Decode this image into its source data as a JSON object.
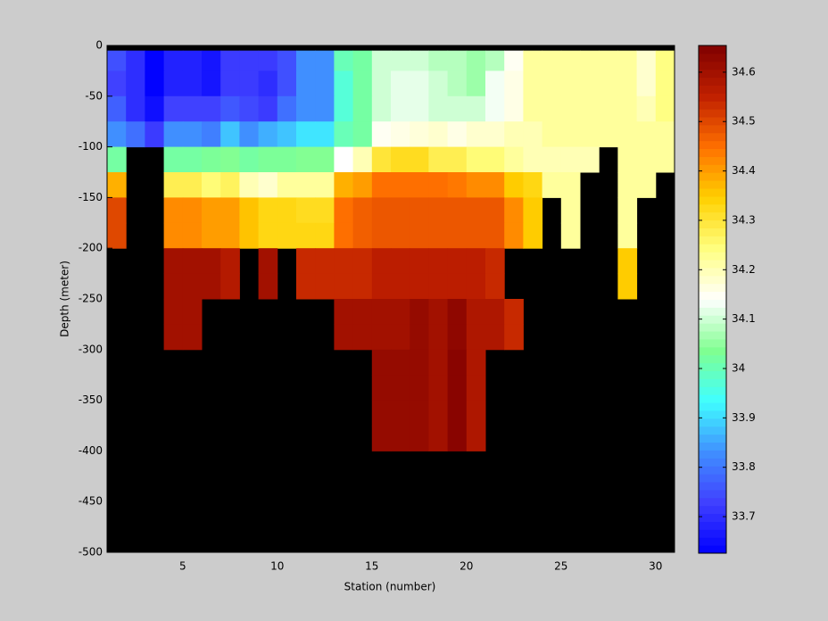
{
  "chart_data": {
    "type": "heatmap",
    "xlabel": "Station (number)",
    "ylabel": "Depth (meter)",
    "x": [
      1,
      2,
      3,
      4,
      5,
      6,
      7,
      8,
      9,
      10,
      11,
      12,
      13,
      14,
      15,
      16,
      17,
      18,
      19,
      20,
      21,
      22,
      23,
      24,
      25,
      26,
      27,
      28,
      29,
      30,
      31
    ],
    "y": [
      -5,
      -25,
      -50,
      -75,
      -100,
      -125,
      -150,
      -175,
      -200,
      -225,
      -250,
      -275,
      -300,
      -325,
      -350,
      -375,
      -400
    ],
    "values": [
      [
        33.75,
        33.7,
        33.63,
        33.68,
        33.68,
        33.66,
        33.72,
        33.72,
        33.72,
        33.75,
        33.83,
        33.83,
        34.0,
        34.02,
        34.1,
        34.1,
        34.1,
        34.08,
        34.08,
        34.06,
        34.08,
        34.15,
        34.22,
        34.22,
        34.22,
        34.22,
        34.22,
        34.22,
        34.18,
        34.24
      ],
      [
        33.73,
        33.7,
        33.63,
        33.68,
        33.68,
        33.66,
        33.72,
        33.72,
        33.7,
        33.75,
        33.83,
        33.83,
        33.97,
        34.02,
        34.1,
        34.12,
        34.12,
        34.1,
        34.08,
        34.06,
        34.13,
        34.16,
        34.22,
        34.22,
        34.22,
        34.22,
        34.22,
        34.22,
        34.18,
        34.24
      ],
      [
        33.77,
        33.7,
        33.65,
        33.73,
        33.73,
        33.73,
        33.76,
        33.74,
        33.72,
        33.79,
        33.83,
        33.83,
        33.97,
        34.02,
        34.1,
        34.12,
        34.12,
        34.1,
        34.1,
        34.1,
        34.13,
        34.16,
        34.22,
        34.22,
        34.22,
        34.22,
        34.22,
        34.22,
        34.2,
        34.24
      ],
      [
        33.83,
        33.79,
        33.72,
        33.83,
        33.83,
        33.81,
        33.88,
        33.83,
        33.86,
        33.88,
        33.91,
        33.91,
        34.0,
        34.02,
        34.15,
        34.16,
        34.17,
        34.18,
        34.16,
        34.18,
        34.18,
        34.2,
        34.2,
        34.22,
        34.22,
        34.22,
        34.22,
        34.22,
        34.22,
        34.22
      ],
      [
        34.02,
        null,
        null,
        34.02,
        34.02,
        34.03,
        34.04,
        34.02,
        34.03,
        34.03,
        34.04,
        34.04,
        34.14,
        34.2,
        34.3,
        34.32,
        34.32,
        34.28,
        34.28,
        34.25,
        34.25,
        34.22,
        34.2,
        34.2,
        34.2,
        34.2,
        null,
        34.22,
        34.22,
        34.22
      ],
      [
        34.38,
        null,
        null,
        34.28,
        34.28,
        34.25,
        34.27,
        34.2,
        34.18,
        34.22,
        34.22,
        34.22,
        34.38,
        34.4,
        34.45,
        34.45,
        34.45,
        34.45,
        34.44,
        34.42,
        34.42,
        34.35,
        34.33,
        34.22,
        34.22,
        null,
        null,
        34.22,
        34.22,
        null
      ],
      [
        34.5,
        null,
        null,
        34.42,
        34.42,
        34.4,
        34.4,
        34.36,
        34.33,
        34.33,
        34.32,
        34.32,
        34.45,
        34.47,
        34.48,
        34.48,
        34.48,
        34.48,
        34.48,
        34.48,
        34.48,
        34.42,
        34.35,
        null,
        34.22,
        null,
        null,
        34.22,
        null,
        null
      ],
      [
        34.5,
        null,
        null,
        34.42,
        34.42,
        34.4,
        34.4,
        34.36,
        34.33,
        34.33,
        34.33,
        34.33,
        34.45,
        34.47,
        34.48,
        34.48,
        34.48,
        34.48,
        34.48,
        34.48,
        34.48,
        34.42,
        34.35,
        null,
        34.22,
        null,
        null,
        34.22,
        null,
        null
      ],
      [
        null,
        null,
        null,
        34.6,
        34.6,
        34.6,
        34.57,
        null,
        34.6,
        null,
        34.54,
        34.54,
        34.54,
        34.54,
        34.56,
        34.56,
        34.56,
        34.56,
        34.56,
        34.56,
        34.54,
        null,
        null,
        null,
        null,
        null,
        null,
        34.35,
        null,
        null
      ],
      [
        null,
        null,
        null,
        34.6,
        34.6,
        34.6,
        34.57,
        null,
        34.6,
        null,
        34.54,
        34.54,
        34.54,
        34.54,
        34.56,
        34.56,
        34.56,
        34.56,
        34.56,
        34.56,
        34.54,
        null,
        null,
        null,
        null,
        null,
        null,
        34.35,
        null,
        null
      ],
      [
        null,
        null,
        null,
        34.6,
        34.6,
        null,
        null,
        null,
        null,
        null,
        null,
        null,
        34.6,
        34.6,
        34.6,
        34.6,
        34.62,
        34.6,
        34.63,
        34.58,
        34.58,
        34.54,
        null,
        null,
        null,
        null,
        null,
        null,
        null,
        null
      ],
      [
        null,
        null,
        null,
        34.6,
        34.6,
        null,
        null,
        null,
        null,
        null,
        null,
        null,
        34.6,
        34.6,
        34.6,
        34.6,
        34.62,
        34.6,
        34.63,
        34.58,
        34.58,
        34.54,
        null,
        null,
        null,
        null,
        null,
        null,
        null,
        null
      ],
      [
        null,
        null,
        null,
        null,
        null,
        null,
        null,
        null,
        null,
        null,
        null,
        null,
        null,
        null,
        34.62,
        34.62,
        34.62,
        34.6,
        34.64,
        34.58,
        null,
        null,
        null,
        null,
        null,
        null,
        null,
        null,
        null,
        null
      ],
      [
        null,
        null,
        null,
        null,
        null,
        null,
        null,
        null,
        null,
        null,
        null,
        null,
        null,
        null,
        34.62,
        34.62,
        34.62,
        34.6,
        34.64,
        34.58,
        null,
        null,
        null,
        null,
        null,
        null,
        null,
        null,
        null,
        null
      ],
      [
        null,
        null,
        null,
        null,
        null,
        null,
        null,
        null,
        null,
        null,
        null,
        null,
        null,
        null,
        34.62,
        34.62,
        34.62,
        34.6,
        34.64,
        34.58,
        null,
        null,
        null,
        null,
        null,
        null,
        null,
        null,
        null,
        null
      ],
      [
        null,
        null,
        null,
        null,
        null,
        null,
        null,
        null,
        null,
        null,
        null,
        null,
        null,
        null,
        34.62,
        34.62,
        34.62,
        34.6,
        34.64,
        34.58,
        null,
        null,
        null,
        null,
        null,
        null,
        null,
        null,
        null,
        null
      ]
    ],
    "xlim": [
      1,
      31
    ],
    "xticks": [
      5,
      10,
      15,
      20,
      25,
      30
    ],
    "ylim": [
      -500,
      0
    ],
    "yticks": [
      -500,
      -450,
      -400,
      -350,
      -300,
      -250,
      -200,
      -150,
      -100,
      -50,
      0
    ],
    "clim": [
      33.626,
      34.654
    ],
    "cticks": [
      33.7,
      33.8,
      33.9,
      34,
      34.1,
      34.2,
      34.3,
      34.4,
      34.5,
      34.6
    ],
    "colormap": [
      "#0000ff",
      "#4040ff",
      "#4090ff",
      "#40ffff",
      "#80ff90",
      "#ffffff",
      "#ffff80",
      "#ffd000",
      "#ff7000",
      "#c02000",
      "#800000"
    ],
    "background": "#000000"
  }
}
